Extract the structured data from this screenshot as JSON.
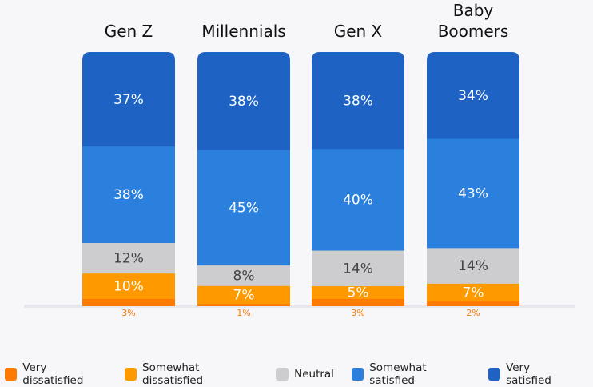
{
  "chart_data": {
    "type": "bar",
    "stacked": true,
    "categories": [
      "Gen Z",
      "Millennials",
      "Gen X",
      "Baby Boomers"
    ],
    "series": [
      {
        "name": "Very dissatisfied",
        "color": "#ff7a00",
        "values": [
          3,
          1,
          3,
          2
        ],
        "labels": [
          "3%",
          "1%",
          "3%",
          "2%"
        ]
      },
      {
        "name": "Somewhat dissatisfied",
        "color": "#ff9900",
        "values": [
          10,
          7,
          5,
          7
        ],
        "labels": [
          "10%",
          "7%",
          "5%",
          "7%"
        ]
      },
      {
        "name": "Neutral",
        "color": "#cdcccf",
        "values": [
          12,
          8,
          14,
          14
        ],
        "labels": [
          "12%",
          "8%",
          "14%",
          "14%"
        ]
      },
      {
        "name": "Somewhat satisfied",
        "color": "#2b80de",
        "values": [
          38,
          45,
          40,
          43
        ],
        "labels": [
          "38%",
          "45%",
          "40%",
          "43%"
        ]
      },
      {
        "name": "Very satisfied",
        "color": "#1e63c4",
        "values": [
          37,
          38,
          38,
          34
        ],
        "labels": [
          "37%",
          "38%",
          "38%",
          "34%"
        ]
      }
    ],
    "legend_position": "bottom",
    "grid": false
  }
}
